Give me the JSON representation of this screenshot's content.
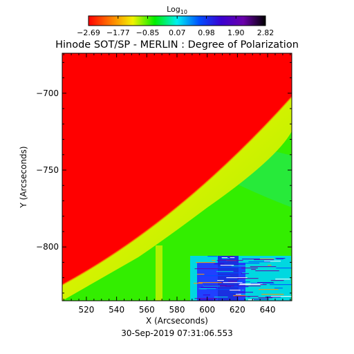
{
  "chart_data": {
    "type": "heatmap",
    "title": "Hinode SOT/SP - MERLIN : Degree of Polarization",
    "xlabel": "X (Arcseconds)",
    "ylabel": "Y (Arcseconds)",
    "timestamp": "30-Sep-2019 07:31:06.553",
    "x_ticks": [
      520,
      540,
      560,
      580,
      600,
      620,
      640
    ],
    "y_ticks": [
      -700,
      -750,
      -800
    ],
    "xlim": [
      504,
      656
    ],
    "ylim": [
      -835,
      -674
    ],
    "colorbar": {
      "label_base": "Log",
      "label_sub": "10",
      "tick_labels": [
        "-2.69",
        "-1.77",
        "-0.85",
        "0.07",
        "0.98",
        "1.90",
        "2.82"
      ],
      "range": [
        -2.69,
        2.82
      ],
      "colormap": "rainbow",
      "colors": [
        "#ff0000",
        "#ff7a00",
        "#f2f200",
        "#00ee00",
        "#00f0f0",
        "#0050ff",
        "#3a00d0",
        "#6a00aa",
        "#000000"
      ]
    },
    "regions": [
      {
        "name": "off-limb",
        "approx_log_value": -2.69,
        "color": "#ff0000"
      },
      {
        "name": "limb-band",
        "approx_log_value": -1.6,
        "color": "#e8f000"
      },
      {
        "name": "disk",
        "approx_log_value": -0.8,
        "color": "#33ee00"
      },
      {
        "name": "active-region",
        "approx_log_value": 1.5,
        "color": "#2040ff"
      }
    ]
  }
}
